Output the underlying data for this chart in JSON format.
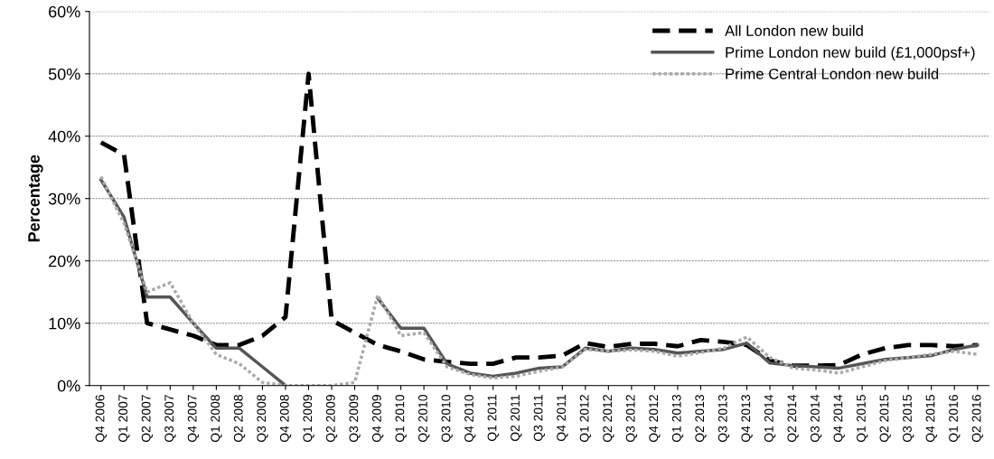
{
  "chart_data": {
    "type": "line",
    "ylabel": "Percentage",
    "categories": [
      "Q4 2006",
      "Q1 2007",
      "Q2 2007",
      "Q3 2007",
      "Q4 2007",
      "Q1 2008",
      "Q2 2008",
      "Q3 2008",
      "Q4 2008",
      "Q1 2009",
      "Q2 2009",
      "Q3 2009",
      "Q4 2009",
      "Q1 2010",
      "Q2 2010",
      "Q3 2010",
      "Q4 2010",
      "Q1 2011",
      "Q2 2011",
      "Q3 2011",
      "Q4 2011",
      "Q1 2012",
      "Q2 2012",
      "Q3 2012",
      "Q4 2012",
      "Q1 2013",
      "Q2 2013",
      "Q3 2013",
      "Q4 2013",
      "Q1 2014",
      "Q2 2014",
      "Q3 2014",
      "Q4 2014",
      "Q1 2015",
      "Q2 2015",
      "Q3 2015",
      "Q4 2015",
      "Q1 2016",
      "Q2 2016"
    ],
    "series": [
      {
        "name": "All London new build",
        "color": "#000000",
        "line_style": "dashed",
        "values": [
          39,
          37,
          10,
          9,
          8,
          6.5,
          6.5,
          8,
          11,
          50,
          10.5,
          8.5,
          6.5,
          5.5,
          4.2,
          3.8,
          3.5,
          3.5,
          4.5,
          4.5,
          4.8,
          6.8,
          6.2,
          6.7,
          6.7,
          6.3,
          7.3,
          7,
          6.5,
          4,
          3.2,
          3.2,
          3.3,
          5,
          6,
          6.5,
          6.5,
          6.3,
          6.5
        ]
      },
      {
        "name": "Prime London new build (£1,000psf+)",
        "color": "#555555",
        "line_style": "solid",
        "values": [
          33,
          27,
          14.2,
          14.2,
          10,
          6,
          6,
          3,
          0,
          null,
          null,
          null,
          14,
          9.2,
          9.2,
          3.5,
          2,
          1.5,
          2,
          2.8,
          3,
          6,
          5.5,
          6,
          5.8,
          5.2,
          5.5,
          5.8,
          6.8,
          3.6,
          3.2,
          3,
          2.8,
          3.5,
          4.2,
          4.5,
          4.8,
          5.8,
          6.5
        ]
      },
      {
        "name": "Prime Central London new build",
        "color": "#aaaaaa",
        "line_style": "dotted",
        "values": [
          33.5,
          26,
          15,
          16.5,
          10,
          5,
          3.5,
          0.5,
          0,
          0,
          0,
          0.5,
          14.5,
          8,
          8.5,
          3,
          1.8,
          1.2,
          1.5,
          2.3,
          3,
          5.8,
          5.5,
          5.7,
          5.5,
          4.7,
          5.3,
          6,
          7.8,
          4.5,
          2.8,
          2.5,
          2,
          3,
          4,
          4.5,
          5,
          5.5,
          5
        ]
      }
    ],
    "ylim": [
      0,
      60
    ],
    "yticks": [
      {
        "value": 0,
        "label": "0%"
      },
      {
        "value": 10,
        "label": "10%"
      },
      {
        "value": 20,
        "label": "20%"
      },
      {
        "value": 30,
        "label": "30%"
      },
      {
        "value": 40,
        "label": "40%"
      },
      {
        "value": 50,
        "label": "50%"
      },
      {
        "value": 60,
        "label": "60%"
      }
    ],
    "grid": "y",
    "legend": "top right"
  }
}
